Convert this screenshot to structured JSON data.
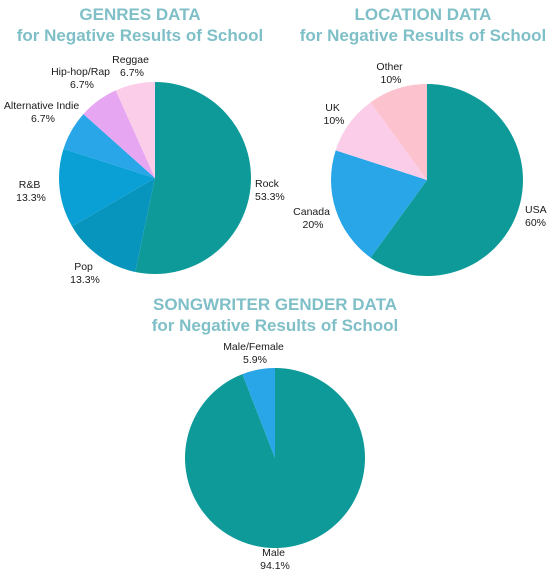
{
  "chart_data": [
    {
      "type": "pie",
      "title": "GENRES DATA",
      "subtitle": "for Negative Results of School",
      "slices": [
        {
          "label": "Rock",
          "value": 53.3,
          "display": "53.3%",
          "color": "#0f9a9a"
        },
        {
          "label": "Pop",
          "value": 13.3,
          "display": "13.3%",
          "color": "#0795be"
        },
        {
          "label": "R&B",
          "value": 13.3,
          "display": "13.3%",
          "color": "#0aa0d6"
        },
        {
          "label": "Alternative Indie",
          "value": 6.7,
          "display": "6.7%",
          "color": "#29a6e8"
        },
        {
          "label": "Hip-hop/Rap",
          "value": 6.7,
          "display": "6.7%",
          "color": "#e6a6f1"
        },
        {
          "label": "Reggae",
          "value": 6.7,
          "display": "6.7%",
          "color": "#fbcde9"
        }
      ]
    },
    {
      "type": "pie",
      "title": "LOCATION DATA",
      "subtitle": "for Negative Results of School",
      "slices": [
        {
          "label": "USA",
          "value": 60,
          "display": "60%",
          "color": "#0f9a9a"
        },
        {
          "label": "Canada",
          "value": 20,
          "display": "20%",
          "color": "#29a6e8"
        },
        {
          "label": "UK",
          "value": 10,
          "display": "10%",
          "color": "#fbcde9"
        },
        {
          "label": "Other",
          "value": 10,
          "display": "10%",
          "color": "#fcc3cf"
        }
      ]
    },
    {
      "type": "pie",
      "title": "SONGWRITER GENDER DATA",
      "subtitle": "for Negative Results of School",
      "slices": [
        {
          "label": "Male",
          "value": 94.1,
          "display": "94.1%",
          "color": "#0f9a9a"
        },
        {
          "label": "Male/Female",
          "value": 5.9,
          "display": "5.9%",
          "color": "#29a6e8"
        }
      ]
    }
  ]
}
